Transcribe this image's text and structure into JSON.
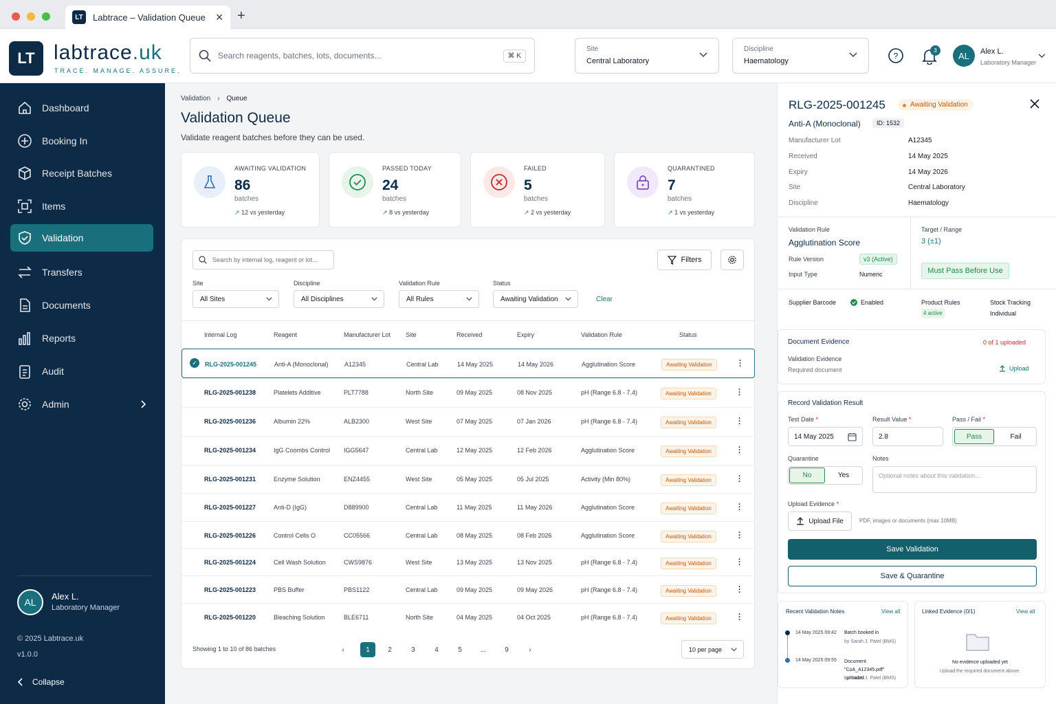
{
  "browser": {
    "tab_title": "Labtrace – Validation Queue",
    "tab_icon": "LT"
  },
  "header": {
    "logo": "LT",
    "brand_main": "labtrace",
    "brand_suffix": ".uk",
    "tagline": "TRACE. MANAGE. ASSURE.",
    "search_placeholder": "Search reagents, batches, lots, documents...",
    "search_shortcut": "⌘ K",
    "site": {
      "label": "Site",
      "value": "Central Laboratory"
    },
    "discipline": {
      "label": "Discipline",
      "value": "Haematology"
    },
    "notifications": "3",
    "user": {
      "initials": "AL",
      "name": "Alex L.",
      "role": "Laboratory Manager"
    }
  },
  "sidebar": {
    "items": [
      {
        "label": "Dashboard"
      },
      {
        "label": "Booking In"
      },
      {
        "label": "Receipt Batches"
      },
      {
        "label": "Items"
      },
      {
        "label": "Validation"
      },
      {
        "label": "Transfers"
      },
      {
        "label": "Documents"
      },
      {
        "label": "Reports"
      },
      {
        "label": "Audit"
      },
      {
        "label": "Admin"
      }
    ],
    "user": {
      "initials": "AL",
      "name": "Alex L.",
      "role": "Laboratory Manager"
    },
    "copyright": "© 2025  Labtrace.uk",
    "version": "v1.0.0",
    "collapse": "Collapse"
  },
  "page": {
    "breadcrumb": [
      "Validation",
      "Queue"
    ],
    "title": "Validation Queue",
    "subtitle": "Validate reagent batches before they can be used."
  },
  "stats": [
    {
      "title": "AWAITING VALIDATION",
      "value": "86",
      "unit": "batches",
      "delta": "12 vs yesterday",
      "color": "#2f6fb0"
    },
    {
      "title": "PASSED TODAY",
      "value": "24",
      "unit": "batches",
      "delta": "8 vs yesterday",
      "color": "#1f8a4c"
    },
    {
      "title": "FAILED",
      "value": "5",
      "unit": "batches",
      "delta": "2 vs yesterday",
      "color": "#c62828"
    },
    {
      "title": "QUARANTINED",
      "value": "7",
      "unit": "batches",
      "delta": "1 vs yesterday",
      "color": "#7b4bb3"
    }
  ],
  "filters": {
    "search_placeholder": "Search by internal log, reagent or lot...",
    "filters_button": "Filters",
    "site": {
      "label": "Site",
      "value": "All Sites"
    },
    "discipline": {
      "label": "Discipline",
      "value": "All Disciplines"
    },
    "rule": {
      "label": "Validation Rule",
      "value": "All Rules"
    },
    "status": {
      "label": "Status",
      "value": "Awaiting Validation"
    },
    "clear": "Clear"
  },
  "table": {
    "headers": [
      "Internal Log",
      "Reagent",
      "Manufacturer Lot",
      "Site",
      "Received",
      "Expiry",
      "Validation Rule",
      "Status"
    ],
    "rows": [
      {
        "log": "RLG-2025-001245",
        "reagent": "Anti-A (Monoclonal)",
        "lot": "A12345",
        "site": "Central Lab",
        "received": "14 May 2025",
        "expiry": "14 May 2026",
        "rule": "Agglutination Score",
        "status": "Awaiting Validation"
      },
      {
        "log": "RLG-2025-001238",
        "reagent": "Platelets Additive",
        "lot": "PLT7788",
        "site": "North Site",
        "received": "09 May 2025",
        "expiry": "08 Nov 2025",
        "rule": "pH (Range 6.8 - 7.4)",
        "status": "Awaiting Validation"
      },
      {
        "log": "RLG-2025-001236",
        "reagent": "Albumin 22%",
        "lot": "ALB2300",
        "site": "West Site",
        "received": "07 May 2025",
        "expiry": "07 Jan 2026",
        "rule": "pH (Range 6.8 - 7.4)",
        "status": "Awaiting Validation"
      },
      {
        "log": "RLG-2025-001234",
        "reagent": "IgG Coombs Control",
        "lot": "IGG5647",
        "site": "Central Lab",
        "received": "12 May 2025",
        "expiry": "12 Feb 2026",
        "rule": "Agglutination Score",
        "status": "Awaiting Validation"
      },
      {
        "log": "RLG-2025-001231",
        "reagent": "Enzyme Solution",
        "lot": "ENZ4455",
        "site": "West Site",
        "received": "05 May 2025",
        "expiry": "05 Jul 2025",
        "rule": "Activity (Min 80%)",
        "status": "Awaiting Validation"
      },
      {
        "log": "RLG-2025-001227",
        "reagent": "Anti-D (IgG)",
        "lot": "D889900",
        "site": "Central Lab",
        "received": "11 May 2025",
        "expiry": "11 May 2026",
        "rule": "Agglutination Score",
        "status": "Awaiting Validation"
      },
      {
        "log": "RLG-2025-001226",
        "reagent": "Control Cells O",
        "lot": "CC05566",
        "site": "Central Lab",
        "received": "08 May 2025",
        "expiry": "08 Feb 2026",
        "rule": "Agglutination Score",
        "status": "Awaiting Validation"
      },
      {
        "log": "RLG-2025-001224",
        "reagent": "Cell Wash Solution",
        "lot": "CWS9876",
        "site": "West Site",
        "received": "13 May 2025",
        "expiry": "13 Nov 2025",
        "rule": "pH (Range 6.8 - 7.4)",
        "status": "Awaiting Validation"
      },
      {
        "log": "RLG-2025-001223",
        "reagent": "PBS Buffer",
        "lot": "PBS1122",
        "site": "Central Lab",
        "received": "09 May 2025",
        "expiry": "09 May 2026",
        "rule": "pH (Range 6.8 - 7.4)",
        "status": "Awaiting Validation"
      },
      {
        "log": "RLG-2025-001220",
        "reagent": "Bleaching Solution",
        "lot": "BLE6711",
        "site": "North Site",
        "received": "04 May 2025",
        "expiry": "04 Oct 2025",
        "rule": "pH (Range 6.8 - 7.4)",
        "status": "Awaiting Validation"
      }
    ],
    "showing": "Showing 1 to 10 of 86 batches",
    "pages": [
      "1",
      "2",
      "3",
      "4",
      "5",
      "...",
      "9"
    ],
    "per_page": "10 per page"
  },
  "detail": {
    "id": "RLG-2025-001245",
    "status": "Awaiting Validation",
    "reagent": "Anti-A (Monoclonal)",
    "internal_id": "ID: 1532",
    "fields": [
      {
        "k": "Manufacturer Lot",
        "v": "A12345"
      },
      {
        "k": "Received",
        "v": "14 May 2025"
      },
      {
        "k": "Expiry",
        "v": "14 May 2026"
      },
      {
        "k": "Site",
        "v": "Central Laboratory"
      },
      {
        "k": "Discipline",
        "v": "Haematology"
      }
    ],
    "rule": {
      "label": "Validation Rule",
      "value": "Agglutination Score",
      "version_label": "Rule Version",
      "version": "v3 (Active)",
      "input_label": "Input Type",
      "input": "Numeric",
      "target_label": "Target / Range",
      "target": "3 (±1)",
      "must_pass": "Must Pass Before Use"
    },
    "supplier_barcode": "Supplier Barcode",
    "enabled": "Enabled",
    "product_rules": "Product Rules",
    "product_rules_val": "4 active",
    "stock_tracking": "Stock Tracking",
    "stock_tracking_val": "Individual",
    "evidence": {
      "title": "Document Evidence",
      "count": "0 of 1 uploaded",
      "name": "Validation Evidence",
      "req": "Required document",
      "upload": "Upload"
    },
    "record": {
      "title": "Record Validation Result",
      "test_date_label": "Test Date",
      "test_date": "14 May 2025",
      "result_label": "Result Value",
      "result": "2.8",
      "passfail_label": "Pass / Fail",
      "pass": "Pass",
      "fail": "Fail",
      "quarantine_label": "Quarantine",
      "no": "No",
      "yes": "Yes",
      "notes_label": "Notes",
      "notes_placeholder": "Optional notes about this validation...",
      "upload_label": "Upload Evidence",
      "upload_btn": "Upload File",
      "upload_hint": "PDF, images or documents (max 10MB)",
      "save": "Save Validation",
      "save_quarantine": "Save & Quarantine"
    },
    "notes": {
      "title": "Recent Validation Notes",
      "view_all": "View all",
      "items": [
        {
          "time": "14 May 2025 09:42",
          "text": "Batch booked in",
          "by": "by Sarah J. Patel (BMS)"
        },
        {
          "time": "14 May 2025 09:55",
          "text": "Document \"CoA_A12345.pdf\" uploaded",
          "by": "by Sarah J. Patel (BMS)"
        }
      ]
    },
    "linked": {
      "title": "Linked Evidence (0/1)",
      "view_all": "View all",
      "empty": "No evidence uploaded yet",
      "hint": "Upload the required document above."
    }
  }
}
